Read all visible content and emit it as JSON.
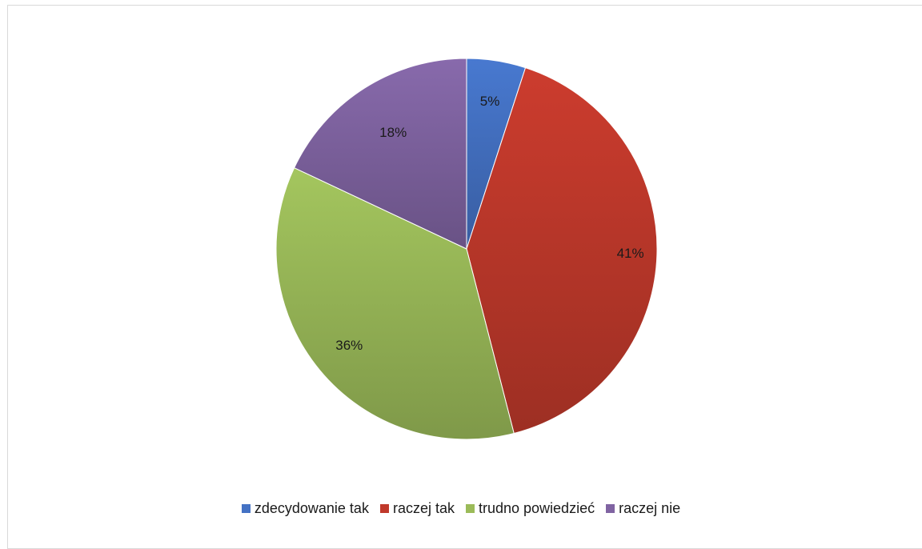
{
  "chart_data": {
    "type": "pie",
    "title": "",
    "categories": [
      "zdecydowanie tak",
      "raczej tak",
      "trudno powiedzieć",
      "raczej nie"
    ],
    "values": [
      5,
      41,
      36,
      18
    ],
    "labels": [
      "5%",
      "41%",
      "36%",
      "18%"
    ],
    "colors": [
      "#4472c4",
      "#c0392b",
      "#9bbb59",
      "#8064a2"
    ],
    "start_angle_deg": -90,
    "direction": "clockwise",
    "legend_position": "bottom"
  }
}
